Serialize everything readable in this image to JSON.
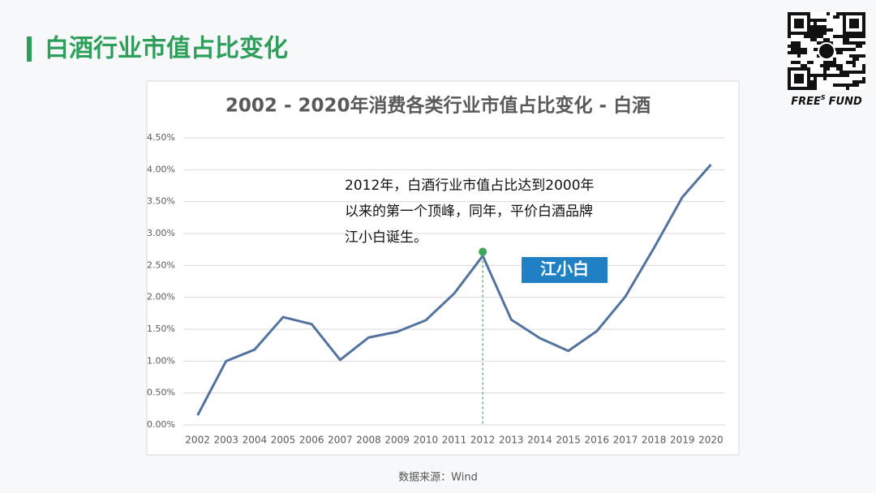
{
  "header": {
    "title": "白酒行业市值占比变化"
  },
  "brand": {
    "name": "FREE",
    "superscript": "S",
    "suffix": "FUND"
  },
  "chart_data": {
    "type": "line",
    "title": "2002 - 2020年消费各类行业市值占比变化 - 白酒",
    "categories": [
      "2002",
      "2003",
      "2004",
      "2005",
      "2006",
      "2007",
      "2008",
      "2009",
      "2010",
      "2011",
      "2012",
      "2013",
      "2014",
      "2015",
      "2016",
      "2017",
      "2018",
      "2019",
      "2020"
    ],
    "series": [
      {
        "color": "#52739f",
        "values": [
          0.15,
          1.0,
          1.18,
          1.69,
          1.58,
          1.02,
          1.37,
          1.46,
          1.64,
          2.06,
          2.65,
          1.65,
          1.36,
          1.16,
          1.47,
          2.01,
          2.77,
          3.57,
          4.08
        ]
      }
    ],
    "ylim": [
      0,
      4.5
    ],
    "yticks": [
      {
        "value": 0,
        "label": "0.00%"
      },
      {
        "value": 0.5,
        "label": "0.50%"
      },
      {
        "value": 1,
        "label": "1.00%"
      },
      {
        "value": 1.5,
        "label": "1.50%"
      },
      {
        "value": 2,
        "label": "2.00%"
      },
      {
        "value": 2.5,
        "label": "2.50%"
      },
      {
        "value": 3,
        "label": "3.00%"
      },
      {
        "value": 3.5,
        "label": "3.50%"
      },
      {
        "value": 4,
        "label": "4.00%"
      },
      {
        "value": 4.5,
        "label": "4.50%"
      }
    ],
    "grid": true,
    "highlight": "2012",
    "highlight_color": "#3aa95a",
    "annotation": [
      "2012年，白酒行业市值占比达到2000年",
      "以来的第一个顶峰，同年，平价白酒品牌",
      "江小白诞生。"
    ],
    "badge": "江小白",
    "source": "数据来源：Wind"
  }
}
